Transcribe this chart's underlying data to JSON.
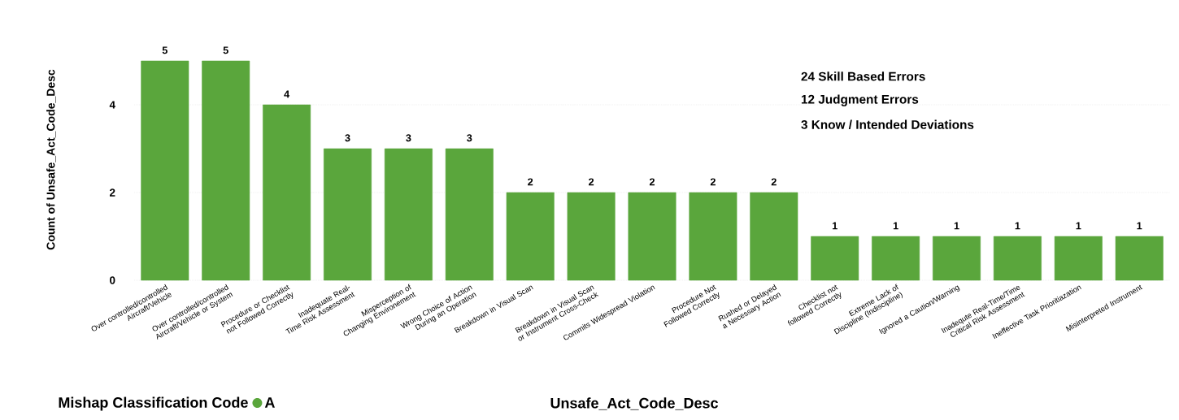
{
  "chart_data": {
    "type": "bar",
    "xlabel": "Unsafe_Act_Code_Desc",
    "ylabel": "Count of Unsafe_Act_Code_Desc",
    "legend_title": "Mishap Classification Code",
    "categories": [
      "Over controlled/controlled Aircraft/Vehicle",
      "Over controlled/controlled Aircraft/Vehicle or System",
      "Procedure or Checklist not Followed Correctly",
      "Inadequate Real-Time Risk Assessment",
      "Misperception of Changing Environement",
      "Wrong Choice of Action During an Operation",
      "Breakdown in Visual Scan",
      "Breakdown in Visual Scan or Instrument Cross-Check",
      "Commits Widespread Violation",
      "Procedure Not Followed Correctly",
      "Rushed or Delayed a Necessary Action",
      "Checklist not followed Correctly",
      "Extreme Lack of Discipline (Indiscipline)",
      "Ignored a Caution/Warning",
      "Inadequte Real-Time/Time Critical Risk Assessment",
      "Ineffective Task Prioritiazation",
      "Misinterpreted Instrument"
    ],
    "series": [
      {
        "name": "A",
        "color": "#5aa63c",
        "values": [
          5,
          5,
          4,
          3,
          3,
          3,
          2,
          2,
          2,
          2,
          2,
          1,
          1,
          1,
          1,
          1,
          1
        ]
      }
    ],
    "ylim": [
      0,
      5
    ],
    "yticks": [
      0,
      2,
      4
    ],
    "grid": "y",
    "legend": "bottom left",
    "data_labels": true,
    "annotations": [
      "24 Skill Based Errors",
      "12 Judgment Errors",
      "3 Know / Intended Deviations"
    ]
  }
}
